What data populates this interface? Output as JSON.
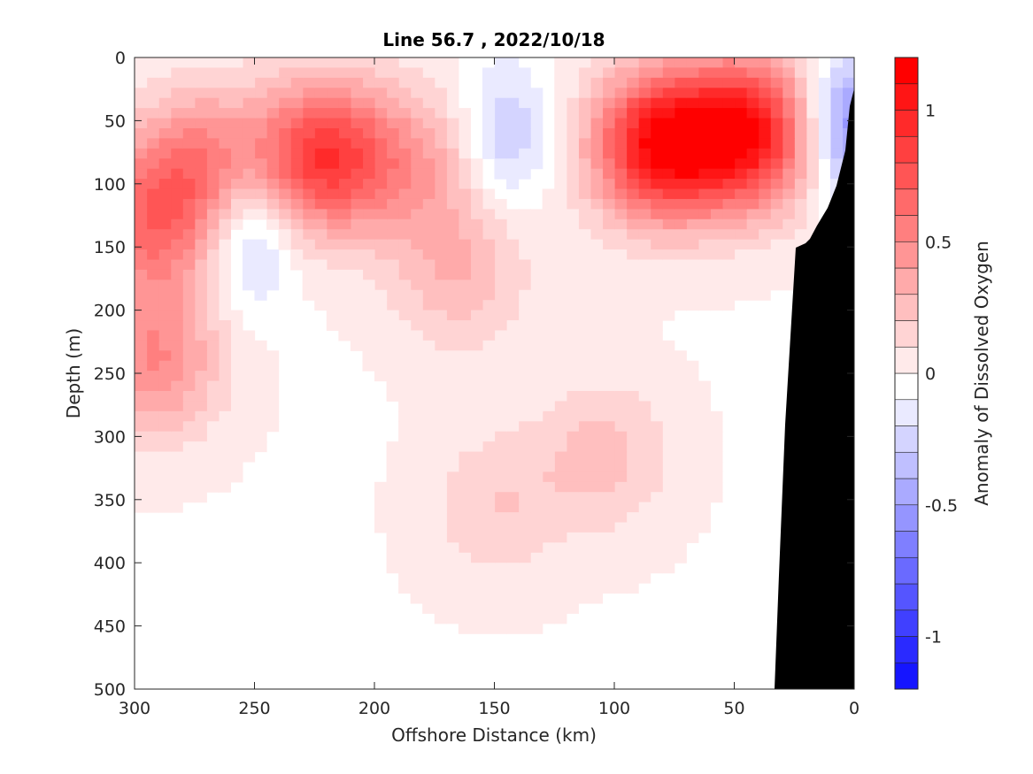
{
  "chart_data": {
    "type": "heatmap",
    "subtype": "filled-contour section",
    "title": "Line 56.7 , 2022/10/18",
    "xlabel": "Offshore Distance (km)",
    "ylabel": "Depth (m)",
    "colorbar_label": "Anomaly of Dissolved Oxygen",
    "xlim": [
      300,
      0
    ],
    "x_reversed": true,
    "ylim": [
      0,
      500
    ],
    "y_reversed": true,
    "x_ticks": [
      300,
      250,
      200,
      150,
      100,
      50,
      0
    ],
    "y_ticks": [
      0,
      50,
      100,
      150,
      200,
      250,
      300,
      350,
      400,
      450,
      500
    ],
    "colorbar_range": [
      -1.2,
      1.2
    ],
    "colorbar_step": 0.1,
    "colorbar_ticks": [
      -1,
      -0.5,
      0,
      0.5,
      1
    ],
    "colormap": {
      "negative": "#0000ff",
      "zero": "#ffffff",
      "positive": "#ff0000"
    },
    "land_color": "#000000",
    "grid": false,
    "features": [
      {
        "kind": "max",
        "x": 82,
        "y": 70,
        "value": 1.05
      },
      {
        "kind": "max",
        "x": 45,
        "y": 60,
        "value": 1.05
      },
      {
        "kind": "max",
        "x": 222,
        "y": 78,
        "value": 0.85
      },
      {
        "kind": "max",
        "x": 293,
        "y": 130,
        "value": 0.6
      },
      {
        "kind": "max",
        "x": 292,
        "y": 240,
        "value": 0.5
      },
      {
        "kind": "max",
        "x": 272,
        "y": 80,
        "value": 0.45
      },
      {
        "kind": "max",
        "x": 185,
        "y": 85,
        "value": 0.35
      },
      {
        "kind": "max",
        "x": 165,
        "y": 170,
        "value": 0.3
      },
      {
        "kind": "max",
        "x": 105,
        "y": 315,
        "value": 0.25
      },
      {
        "kind": "max",
        "x": 150,
        "y": 355,
        "value": 0.2
      },
      {
        "kind": "min",
        "x": 252,
        "y": 140,
        "value": -0.35
      },
      {
        "kind": "min",
        "x": 145,
        "y": 60,
        "value": -0.3
      },
      {
        "kind": "min",
        "x": 2,
        "y": 55,
        "value": -0.6
      }
    ]
  }
}
